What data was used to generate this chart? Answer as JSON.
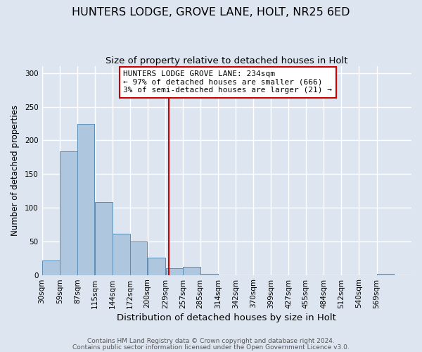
{
  "title": "HUNTERS LODGE, GROVE LANE, HOLT, NR25 6ED",
  "subtitle": "Size of property relative to detached houses in Holt",
  "xlabel": "Distribution of detached houses by size in Holt",
  "ylabel": "Number of detached properties",
  "footnote1": "Contains HM Land Registry data © Crown copyright and database right 2024.",
  "footnote2": "Contains public sector information licensed under the Open Government Licence v3.0.",
  "bar_edges": [
    30,
    59,
    87,
    115,
    144,
    172,
    200,
    229,
    257,
    285,
    314,
    342,
    370,
    399,
    427,
    455,
    484,
    512,
    540,
    569,
    597
  ],
  "bar_heights": [
    22,
    184,
    224,
    108,
    61,
    50,
    26,
    10,
    12,
    2,
    0,
    0,
    0,
    0,
    0,
    0,
    0,
    0,
    0,
    2
  ],
  "bar_color": "#aec6de",
  "bar_edgecolor": "#5a8db5",
  "bg_color": "#dde6f0",
  "grid_color": "#ffffff",
  "vline_x": 234,
  "vline_color": "#cc0000",
  "annotation_title": "HUNTERS LODGE GROVE LANE: 234sqm",
  "annotation_line2": "← 97% of detached houses are smaller (666)",
  "annotation_line3": "3% of semi-detached houses are larger (21) →",
  "annotation_box_color": "#cc0000",
  "ylim": [
    0,
    310
  ],
  "yticks": [
    0,
    50,
    100,
    150,
    200,
    250,
    300
  ],
  "title_fontsize": 11.5,
  "subtitle_fontsize": 9.5,
  "xlabel_fontsize": 9.5,
  "ylabel_fontsize": 8.5,
  "tick_fontsize": 7.5,
  "annotation_fontsize": 8,
  "footnote_fontsize": 6.5
}
